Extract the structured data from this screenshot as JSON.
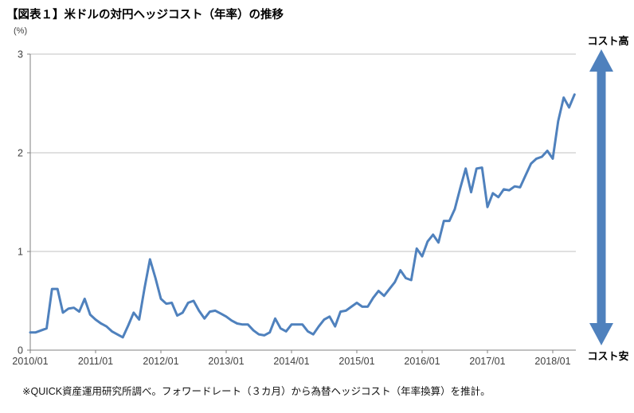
{
  "chart_data": {
    "type": "line",
    "title": "【図表１】米ドルの対円ヘッジコスト（年率）の推移",
    "unit_label": "(%)",
    "x_range": [
      "2010/01",
      "2018/05"
    ],
    "frequency": "monthly",
    "x_tick_labels": [
      "2010/01",
      "2011/01",
      "2012/01",
      "2013/01",
      "2014/01",
      "2015/01",
      "2016/01",
      "2017/01",
      "2018/01"
    ],
    "y_ticks": [
      0,
      1,
      2,
      3
    ],
    "ylim": [
      0,
      3
    ],
    "grid": "horizontal",
    "legend": "none",
    "series": [
      {
        "name": "米ドルの対円ヘッジコスト（年率）",
        "color": "#4F81BD",
        "values": [
          0.18,
          0.18,
          0.2,
          0.22,
          0.62,
          0.62,
          0.38,
          0.42,
          0.43,
          0.39,
          0.52,
          0.36,
          0.31,
          0.27,
          0.24,
          0.19,
          0.16,
          0.13,
          0.25,
          0.38,
          0.31,
          0.63,
          0.92,
          0.73,
          0.52,
          0.47,
          0.48,
          0.35,
          0.38,
          0.48,
          0.5,
          0.4,
          0.32,
          0.39,
          0.4,
          0.37,
          0.34,
          0.3,
          0.27,
          0.26,
          0.26,
          0.2,
          0.16,
          0.15,
          0.18,
          0.32,
          0.22,
          0.19,
          0.26,
          0.26,
          0.26,
          0.19,
          0.16,
          0.24,
          0.31,
          0.34,
          0.24,
          0.39,
          0.4,
          0.44,
          0.48,
          0.44,
          0.44,
          0.53,
          0.6,
          0.55,
          0.62,
          0.69,
          0.81,
          0.73,
          0.71,
          1.03,
          0.95,
          1.1,
          1.17,
          1.09,
          1.31,
          1.31,
          1.43,
          1.64,
          1.84,
          1.6,
          1.84,
          1.85,
          1.45,
          1.59,
          1.55,
          1.63,
          1.62,
          1.66,
          1.65,
          1.77,
          1.89,
          1.94,
          1.96,
          2.02,
          1.94,
          2.32,
          2.56,
          2.46,
          2.59
        ]
      }
    ],
    "annotations": {
      "top": "コスト高",
      "bottom": "コスト安",
      "arrow_color": "#4F81BD"
    },
    "footnote": "※QUICK資産運用研究所調べ。フォワードレート（３カ月）から為替ヘッジコスト（年率換算）を推計。",
    "colors": {
      "axis": "#808080",
      "grid": "#C0C0C0",
      "tick_label": "#404040"
    }
  }
}
